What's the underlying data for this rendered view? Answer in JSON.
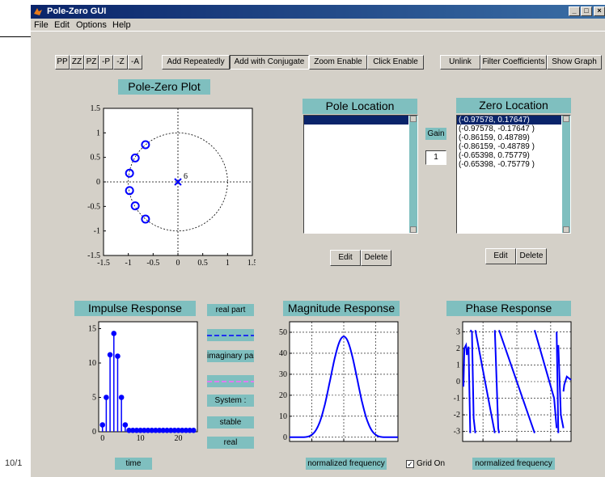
{
  "background": {
    "date_fragment": "10/1"
  },
  "window": {
    "title": "Pole-Zero GUI"
  },
  "menu": [
    "File",
    "Edit",
    "Options",
    "Help"
  ],
  "toolbar": {
    "type_buttons": [
      "PP",
      "ZZ",
      "PZ",
      "-P",
      "-Z",
      "-A"
    ],
    "mode_buttons": [
      "Add Repeatedly",
      "Add with Conjugate",
      "Zoom Enable",
      "Click Enable"
    ],
    "right_buttons": [
      "Unlink",
      "Filter Coefficients",
      "Show Graph"
    ]
  },
  "pole_zero": {
    "title": "Pole-Zero Plot",
    "xlim": [
      -1.5,
      1.5
    ],
    "ylim": [
      -1.5,
      1.5
    ],
    "xticks": [
      "-1.5",
      "-1",
      "-0.5",
      "0",
      "0.5",
      "1",
      "1.5"
    ],
    "yticks": [
      "1.5",
      "1",
      "0.5",
      "0",
      "-0.5",
      "-1",
      "-1.5"
    ],
    "pole_multiplicity": "6",
    "zeros": [
      [
        -0.97578,
        0.17647
      ],
      [
        -0.97578,
        -0.17647
      ],
      [
        -0.86159,
        0.48789
      ],
      [
        -0.86159,
        -0.48789
      ],
      [
        -0.65398,
        0.75779
      ],
      [
        -0.65398,
        -0.75779
      ]
    ],
    "poles": [
      [
        0,
        0
      ]
    ]
  },
  "pole_location": {
    "title": "Pole Location",
    "items": [
      ""
    ],
    "edit": "Edit",
    "delete": "Delete"
  },
  "zero_location": {
    "title": "Zero Location",
    "items": [
      "(-0.97578, 0.17647)",
      "(-0.97578, -0.17647 )",
      "(-0.86159, 0.48789)",
      "(-0.86159, -0.48789 )",
      "(-0.65398, 0.75779)",
      "(-0.65398, -0.75779 )"
    ],
    "edit": "Edit",
    "delete": "Delete"
  },
  "gain": {
    "label": "Gain",
    "value": "1"
  },
  "impulse": {
    "title": "Impulse Response",
    "xlabel": "time",
    "xticks": [
      "0",
      "10",
      "20"
    ],
    "yticks": [
      "15",
      "10",
      "5",
      "0"
    ],
    "xlim": [
      -1,
      25
    ],
    "ylim": [
      0,
      16
    ],
    "values": [
      1,
      5,
      11.2,
      14.3,
      11,
      5,
      1,
      0.2,
      0.2,
      0.2,
      0.2,
      0.2,
      0.2,
      0.2,
      0.2,
      0.2,
      0.2,
      0.2,
      0.2,
      0.2,
      0.2,
      0.2,
      0.2,
      0.2,
      0.2
    ]
  },
  "legend": {
    "real_part": "real part",
    "imaginary_part": "imaginary part",
    "system": "System :",
    "stable": "stable",
    "real": "real",
    "real_color": "#0000ff",
    "imag_color": "#ff66ff"
  },
  "magnitude": {
    "title": "Magnitude Response",
    "xlabel": "normalized frequency",
    "xticks": [
      "-2",
      "0",
      "2"
    ],
    "yticks": [
      "50",
      "40",
      "30",
      "20",
      "10",
      "0"
    ],
    "xlim": [
      -3.4,
      3.4
    ],
    "ylim": [
      -2,
      55
    ],
    "peak": 48
  },
  "phase": {
    "title": "Phase Response",
    "xlabel": "normalized frequency",
    "xticks": [
      "-2",
      "0",
      "2"
    ],
    "yticks": [
      "3",
      "2",
      "1",
      "0",
      "-1",
      "-2",
      "-3"
    ],
    "xlim": [
      -3.2,
      3.2
    ],
    "ylim": [
      -3.6,
      3.6
    ]
  },
  "grid": {
    "label": "Grid On",
    "checked": true
  },
  "chart_data": [
    {
      "type": "scatter",
      "title": "Pole-Zero Plot",
      "xlim": [
        -1.5,
        1.5
      ],
      "ylim": [
        -1.5,
        1.5
      ],
      "series": [
        {
          "name": "zeros",
          "x": [
            -0.97578,
            -0.97578,
            -0.86159,
            -0.86159,
            -0.65398,
            -0.65398
          ],
          "y": [
            0.17647,
            -0.17647,
            0.48789,
            -0.48789,
            0.75779,
            -0.75779
          ]
        },
        {
          "name": "poles",
          "x": [
            0
          ],
          "y": [
            0
          ]
        }
      ]
    },
    {
      "type": "bar",
      "title": "Impulse Response",
      "xlabel": "time",
      "xlim": [
        -1,
        25
      ],
      "ylim": [
        0,
        16
      ],
      "x": [
        0,
        1,
        2,
        3,
        4,
        5,
        6,
        7,
        8,
        9,
        10,
        11,
        12,
        13,
        14,
        15,
        16,
        17,
        18,
        19,
        20,
        21,
        22,
        23,
        24
      ],
      "values": [
        1,
        5,
        11.2,
        14.3,
        11,
        5,
        1,
        0.2,
        0.2,
        0.2,
        0.2,
        0.2,
        0.2,
        0.2,
        0.2,
        0.2,
        0.2,
        0.2,
        0.2,
        0.2,
        0.2,
        0.2,
        0.2,
        0.2,
        0.2
      ]
    },
    {
      "type": "line",
      "title": "Magnitude Response",
      "xlabel": "normalized frequency",
      "xlim": [
        -3.4,
        3.4
      ],
      "ylim": [
        -2,
        55
      ]
    },
    {
      "type": "line",
      "title": "Phase Response",
      "xlabel": "normalized frequency",
      "xlim": [
        -3.2,
        3.2
      ],
      "ylim": [
        -3.6,
        3.6
      ]
    }
  ]
}
